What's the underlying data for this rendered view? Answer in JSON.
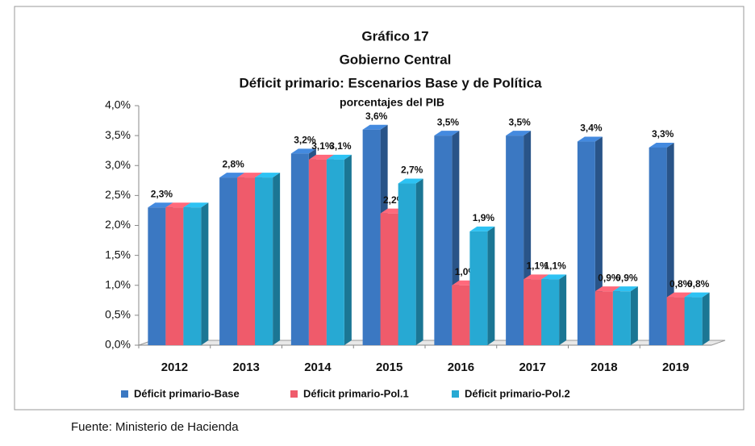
{
  "chart_data": {
    "type": "bar",
    "title": [
      "Gráfico 17",
      "Gobierno Central",
      "Déficit primario: Escenarios Base y de Política"
    ],
    "subtitle": "porcentajes del PIB",
    "source": "Fuente: Ministerio de Hacienda",
    "categories": [
      "2012",
      "2013",
      "2014",
      "2015",
      "2016",
      "2017",
      "2018",
      "2019"
    ],
    "series": [
      {
        "name": "Déficit primario-Base",
        "color": "#3b78c2",
        "values": [
          2.3,
          2.8,
          3.2,
          3.6,
          3.5,
          3.5,
          3.4,
          3.3
        ],
        "value_labels": [
          "2,3%",
          "2,8%",
          "3,2%",
          "3,6%",
          "3,5%",
          "3,5%",
          "3,4%",
          "3,3%"
        ]
      },
      {
        "name": "Déficit primario-Pol.1",
        "color": "#ef5b6b",
        "values": [
          2.3,
          2.8,
          3.1,
          2.2,
          1.0,
          1.1,
          0.9,
          0.8
        ],
        "value_labels": [
          null,
          null,
          "3,1%",
          "2,2%",
          "1,0%",
          "1,1%",
          "0,9%",
          "0,8%"
        ]
      },
      {
        "name": "Déficit primario-Pol.2",
        "color": "#27a9d3",
        "values": [
          2.3,
          2.8,
          3.1,
          2.7,
          1.9,
          1.1,
          0.9,
          0.8
        ],
        "value_labels": [
          null,
          null,
          "3,1%",
          "2,7%",
          "1,9%",
          "1,1%",
          "0,9%",
          "0,8%"
        ]
      }
    ],
    "ylim": [
      0,
      4
    ],
    "yticks": [
      {
        "value": 0,
        "label": "0,0%"
      },
      {
        "value": 0.5,
        "label": "0,5%"
      },
      {
        "value": 1,
        "label": "1,0%"
      },
      {
        "value": 1.5,
        "label": "1,5%"
      },
      {
        "value": 2,
        "label": "2,0%"
      },
      {
        "value": 2.5,
        "label": "2,5%"
      },
      {
        "value": 3,
        "label": "3,0%"
      },
      {
        "value": 3.5,
        "label": "3,5%"
      },
      {
        "value": 4,
        "label": "4,0%"
      }
    ],
    "grid": false,
    "legend": "bottom"
  }
}
